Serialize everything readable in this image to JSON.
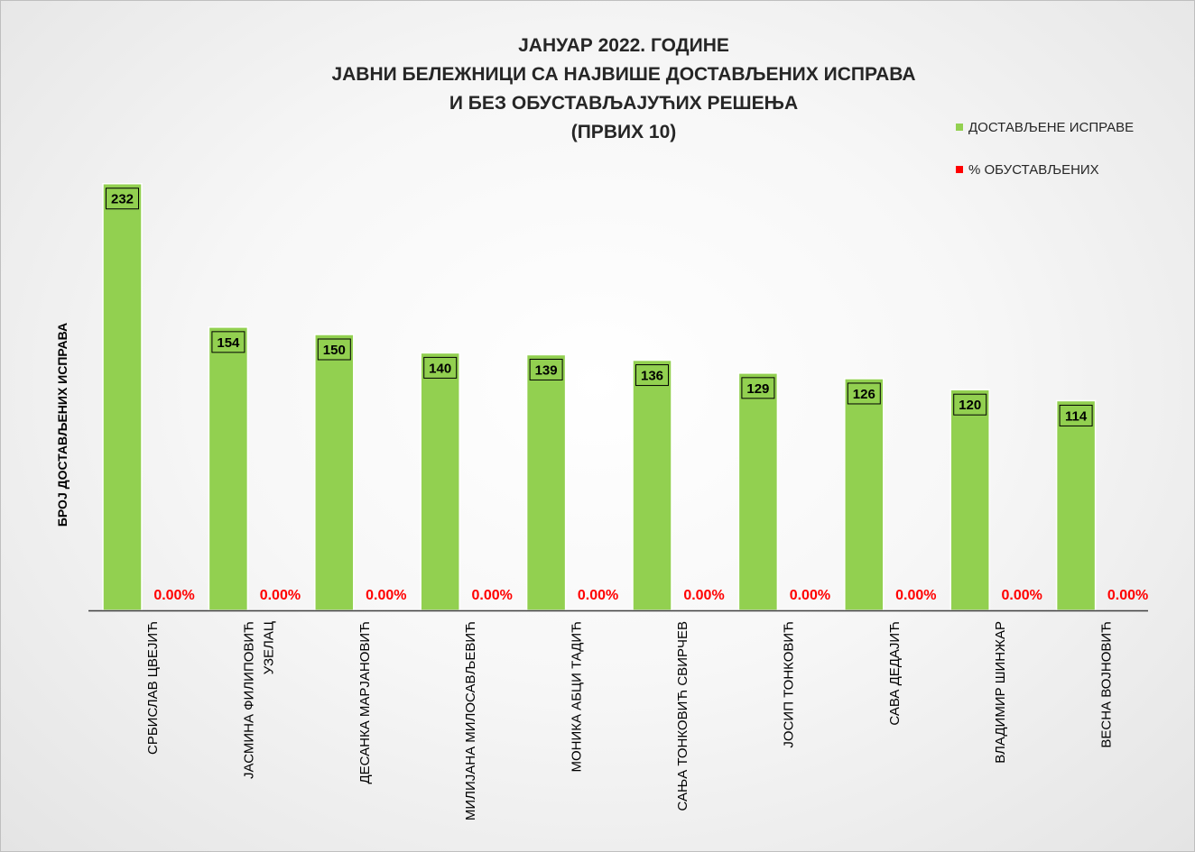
{
  "chart_data": {
    "type": "bar",
    "title": [
      "ЈАНУАР 2022. ГОДИНЕ",
      "ЈАВНИ БЕЛЕЖНИЦИ СА НАЈВИШЕ ДОСТАВЉЕНИХ ИСПРАВА",
      "И БЕЗ ОБУСТАВЉАЈУЋИХ РЕШЕЊА",
      "(ПРВИХ 10)"
    ],
    "ylabel": "БРОЈ ДОСТАВЉЕНИХ ИСПРАВА",
    "xlabel": "",
    "ylim": [
      0,
      250
    ],
    "grid": false,
    "legend_position": "top-right",
    "categories": [
      [
        "СРБИСЛАВ ЦВЕЈИЋ"
      ],
      [
        "ЈАСМИНА ФИЛИПОВИЋ",
        "УЗЕЛАЦ"
      ],
      [
        "ДЕСАНКА МАРЈАНОВИЋ"
      ],
      [
        "МИЛИЈАНА МИЛОСАВЉЕВИЋ"
      ],
      [
        "МОНИКА АБЦИ ТАДИЋ"
      ],
      [
        "САЊА ТОНКОВИЋ СВИРЧЕВ"
      ],
      [
        "ЈОСИП ТОНКОВИЋ"
      ],
      [
        "САВА ДЕДАЈИЋ"
      ],
      [
        "ВЛАДИМИР ШИНЖАР"
      ],
      [
        "ВЕСНА ВОЈНОВИЋ"
      ]
    ],
    "series": [
      {
        "name": "ДОСТАВЉЕНЕ ИСПРАВЕ",
        "color": "#92d050",
        "values": [
          232,
          154,
          150,
          140,
          139,
          136,
          129,
          126,
          120,
          114
        ],
        "labels": [
          "232",
          "154",
          "150",
          "140",
          "139",
          "136",
          "129",
          "126",
          "120",
          "114"
        ]
      },
      {
        "name": "% ОБУСТАВЉЕНИХ",
        "color": "#ff0000",
        "values": [
          0,
          0,
          0,
          0,
          0,
          0,
          0,
          0,
          0,
          0
        ],
        "labels": [
          "0.00%",
          "0.00%",
          "0.00%",
          "0.00%",
          "0.00%",
          "0.00%",
          "0.00%",
          "0.00%",
          "0.00%",
          "0.00%"
        ]
      }
    ]
  }
}
